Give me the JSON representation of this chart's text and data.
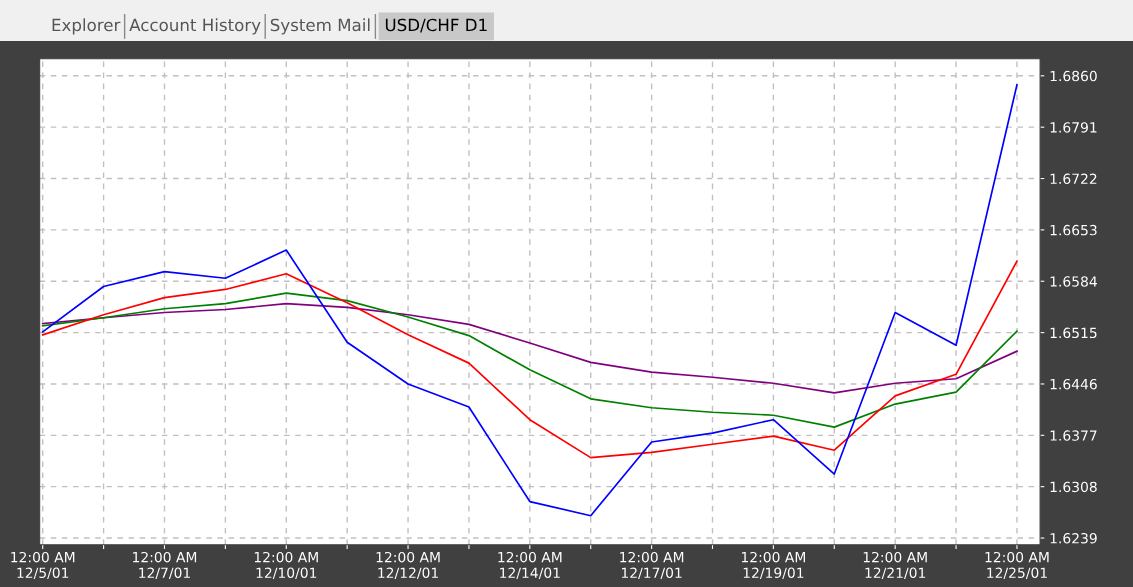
{
  "chart_data": {
    "type": "line",
    "title": "USD/CHF D1",
    "annotations": [
      "Explorer",
      "Account History",
      "System Mail"
    ],
    "categories": [
      "12:00 AM\n12/5/01",
      null,
      "12:00 AM\n12/7/01",
      null,
      "12:00 AM\n12/10/01",
      null,
      "12:00 AM\n12/12/01",
      null,
      "12:00 AM\n12/14/01",
      null,
      "12:00 AM\n12/17/01",
      null,
      "12:00 AM\n12/19/01",
      null,
      "12:00 AM\n12/21/01",
      null,
      "12:00 AM\n12/25/01"
    ],
    "series": [
      {
        "color": "#800080",
        "values": [
          1.6527,
          1.6535,
          1.6542,
          1.6546,
          1.6554,
          1.6549,
          1.6539,
          1.6526,
          1.6501,
          1.6475,
          1.6462,
          1.6455,
          1.6447,
          1.6434,
          1.6447,
          1.6453,
          1.649
        ]
      },
      {
        "color": "#008000",
        "values": [
          1.6524,
          1.6535,
          1.6547,
          1.6554,
          1.6568,
          1.6558,
          1.6536,
          1.6511,
          1.6465,
          1.6426,
          1.6414,
          1.6408,
          1.6404,
          1.6388,
          1.6419,
          1.6435,
          1.6517
        ]
      },
      {
        "color": "#ff0000",
        "values": [
          1.6512,
          1.6539,
          1.6562,
          1.6573,
          1.6594,
          1.6555,
          1.6512,
          1.6474,
          1.6398,
          1.6347,
          1.6354,
          1.6365,
          1.6376,
          1.6357,
          1.643,
          1.6459,
          1.6611
        ]
      },
      {
        "color": "#0000ff",
        "values": [
          1.6516,
          1.6577,
          1.6597,
          1.6588,
          1.6626,
          1.6502,
          1.6446,
          1.6415,
          1.6288,
          1.6269,
          1.6368,
          1.638,
          1.6398,
          1.6325,
          1.6542,
          1.6498,
          1.6848
        ]
      }
    ],
    "ylim": [
      1.623,
      1.6883
    ],
    "yticks": [
      {
        "value": 1.6239,
        "label": "1.6239"
      },
      {
        "value": 1.6308,
        "label": "1.6308"
      },
      {
        "value": 1.6377,
        "label": "1.6377"
      },
      {
        "value": 1.6446,
        "label": "1.6446"
      },
      {
        "value": 1.6515,
        "label": "1.6515"
      },
      {
        "value": 1.6584,
        "label": "1.6584"
      },
      {
        "value": 1.6653,
        "label": "1.6653"
      },
      {
        "value": 1.6722,
        "label": "1.6722"
      },
      {
        "value": 1.6791,
        "label": "1.6791"
      },
      {
        "value": 1.686,
        "label": "1.6860"
      }
    ],
    "grid": true,
    "marker": "none",
    "line_style": "solid"
  }
}
